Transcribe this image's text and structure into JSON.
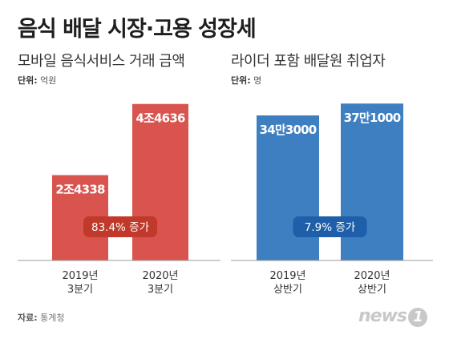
{
  "title": "음식 배달 시장·고용 성장세",
  "source_label": "자료:",
  "source_value": "통계청",
  "logo": {
    "word": "news",
    "mark": "1"
  },
  "chart_data": [
    {
      "type": "bar",
      "subtitle": "모바일 음식서비스 거래 금액",
      "unit_label": "단위:",
      "unit_value": "억원",
      "categories": [
        [
          "2019년",
          "3분기"
        ],
        [
          "2020년",
          "3분기"
        ]
      ],
      "values": [
        24338,
        44636
      ],
      "value_labels": [
        "2조4338",
        "4조4636"
      ],
      "ylim": [
        0,
        48000
      ],
      "color": "#d9534f",
      "badge": "83.4% 증가",
      "badge_color": "#c0392b"
    },
    {
      "type": "bar",
      "subtitle": "라이더 포함 배달원 취업자",
      "unit_label": "단위:",
      "unit_value": "명",
      "categories": [
        [
          "2019년",
          "상반기"
        ],
        [
          "2020년",
          "상반기"
        ]
      ],
      "values": [
        343000,
        371000
      ],
      "value_labels": [
        "34만3000",
        "37만1000"
      ],
      "ylim": [
        0,
        398000
      ],
      "color": "#3e7fc1",
      "badge": "7.9% 증가",
      "badge_color": "#1f5ea8"
    }
  ]
}
